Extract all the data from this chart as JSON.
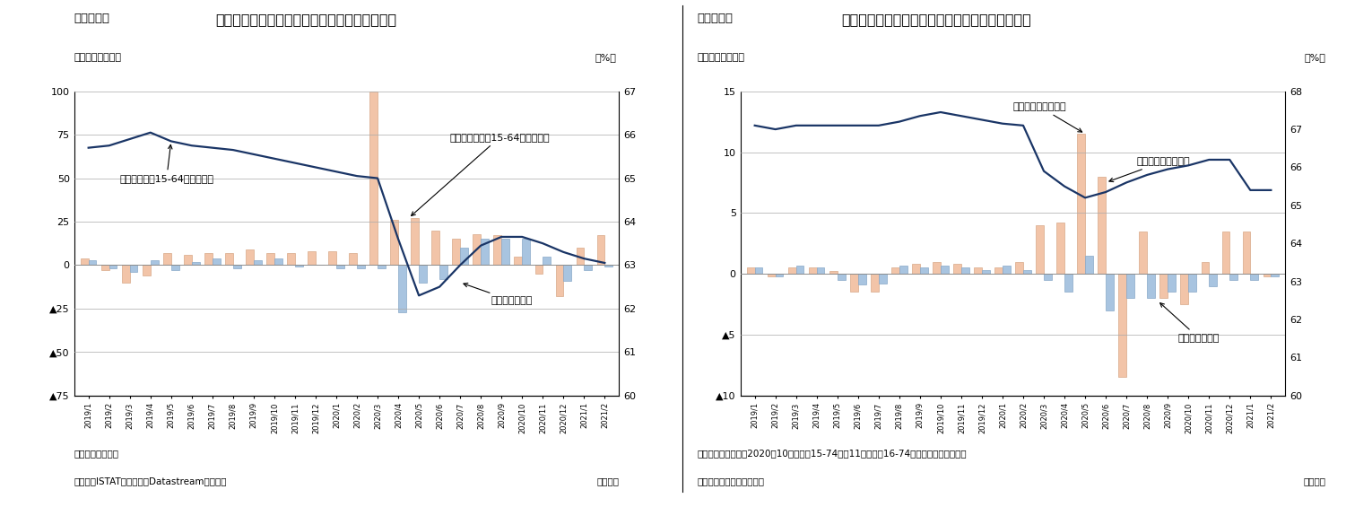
{
  "fig7": {
    "title": "イタリアの失業者・非労働力人口・労働参加率",
    "header": "（図表７）",
    "ylabel_left": "（前月差、万人）",
    "ylabel_right": "（%）",
    "xlabel": "（月次）",
    "note1": "（注）季節調整値",
    "note2": "（資料）ISTATのデータをDatastreamより取得",
    "ylim_left": [
      -75,
      100
    ],
    "ylim_right": [
      60,
      67
    ],
    "yticks_left": [
      100,
      75,
      50,
      25,
      0,
      -25,
      -50,
      -75
    ],
    "yticks_right": [
      60,
      61,
      62,
      63,
      64,
      65,
      66,
      67
    ],
    "labels": [
      "2019/1",
      "2019/2",
      "2019/3",
      "2019/4",
      "2019/5",
      "2019/6",
      "2019/7",
      "2019/8",
      "2019/9",
      "2019/10",
      "2019/11",
      "2019/12",
      "2020/1",
      "2020/2",
      "2020/3",
      "2020/4",
      "2020/5",
      "2020/6",
      "2020/7",
      "2020/8",
      "2020/9",
      "2020/10",
      "2020/11",
      "2020/12",
      "2021/1",
      "2021/2"
    ],
    "unemployed": [
      3,
      -2,
      -4,
      3,
      -3,
      2,
      4,
      -2,
      3,
      4,
      -1,
      0,
      -2,
      -2,
      -2,
      -27,
      -10,
      -8,
      10,
      15,
      15,
      15,
      5,
      -9,
      -3,
      -1
    ],
    "non_labor": [
      4,
      -3,
      -10,
      -6,
      7,
      6,
      7,
      7,
      9,
      7,
      7,
      8,
      8,
      7,
      100,
      26,
      27,
      20,
      15,
      18,
      17,
      5,
      -5,
      -18,
      10,
      17
    ],
    "participation": [
      65.7,
      65.75,
      65.9,
      66.05,
      65.85,
      65.75,
      65.7,
      65.65,
      65.55,
      65.45,
      65.35,
      65.25,
      65.15,
      65.05,
      65.0,
      63.6,
      62.3,
      62.5,
      63.0,
      63.45,
      63.65,
      63.65,
      63.5,
      63.3,
      63.15,
      63.05
    ],
    "ann_labor_text": "労働参加率（15-64才、右軸）",
    "ann_nonlabor_text": "非労働者人口（15-64才）の変化",
    "ann_unemployed_text": "失業者数の変化",
    "bar_color_unemployed": "#a8c4e0",
    "bar_color_nonlabor": "#f2c4a8",
    "line_color": "#1a3566",
    "bar_edge_unemployed": "#88a8c8",
    "bar_edge_nonlabor": "#d8a888"
  },
  "fig8": {
    "title": "ポルトガルの失業者・非労働力人口・労働参加率",
    "header": "（図表８）",
    "ylabel_left": "（前月差、万人）",
    "ylabel_right": "（%）",
    "xlabel": "（月次）",
    "note1": "（注）季節調整値、2020年10月以前は15-74才、11月以降は16-74才で集計基準が異なる",
    "note2": "（資料）ポルトガル統計局",
    "ylim_left": [
      -10,
      15
    ],
    "ylim_right": [
      60,
      68
    ],
    "yticks_left": [
      15,
      10,
      5,
      0,
      -5,
      -10
    ],
    "yticks_right": [
      60,
      61,
      62,
      63,
      64,
      65,
      66,
      67,
      68
    ],
    "labels": [
      "2019/1",
      "2019/2",
      "2019/3",
      "2019/4",
      "2019/5",
      "2019/6",
      "2019/7",
      "2019/8",
      "2019/9",
      "2019/10",
      "2019/11",
      "2019/12",
      "2020/1",
      "2020/2",
      "2020/3",
      "2020/4",
      "2020/5",
      "2020/6",
      "2020/7",
      "2020/8",
      "2020/9",
      "2020/10",
      "2020/11",
      "2020/12",
      "2021/1",
      "2021/2"
    ],
    "unemployed": [
      0.5,
      -0.2,
      0.7,
      0.5,
      -0.5,
      -0.9,
      -0.8,
      0.7,
      0.5,
      0.7,
      0.5,
      0.3,
      0.7,
      0.3,
      -0.5,
      -1.5,
      1.5,
      -3.0,
      -2.0,
      -2.0,
      -1.5,
      -1.5,
      -1.0,
      -0.5,
      -0.5,
      -0.2
    ],
    "non_labor": [
      0.5,
      -0.2,
      0.5,
      0.5,
      0.2,
      -1.5,
      -1.5,
      0.5,
      0.8,
      1.0,
      0.8,
      0.5,
      0.5,
      1.0,
      4.0,
      4.2,
      11.5,
      8.0,
      -8.5,
      3.5,
      -2.0,
      -2.5,
      1.0,
      3.5,
      3.5,
      -0.2
    ],
    "participation": [
      67.1,
      67.0,
      67.1,
      67.1,
      67.1,
      67.1,
      67.1,
      67.2,
      67.35,
      67.45,
      67.35,
      67.25,
      67.15,
      67.1,
      65.9,
      65.5,
      65.2,
      65.35,
      65.6,
      65.8,
      65.95,
      66.05,
      66.2,
      66.2,
      65.4,
      65.4
    ],
    "ann_labor_text": "労働参加率（右軸）",
    "ann_nonlabor_text": "非労働者人口の変化",
    "ann_unemployed_text": "失業者数の変化",
    "bar_color_unemployed": "#a8c4e0",
    "bar_color_nonlabor": "#f2c4a8",
    "line_color": "#1a3566",
    "bar_edge_unemployed": "#88a8c8",
    "bar_edge_nonlabor": "#d8a888"
  }
}
